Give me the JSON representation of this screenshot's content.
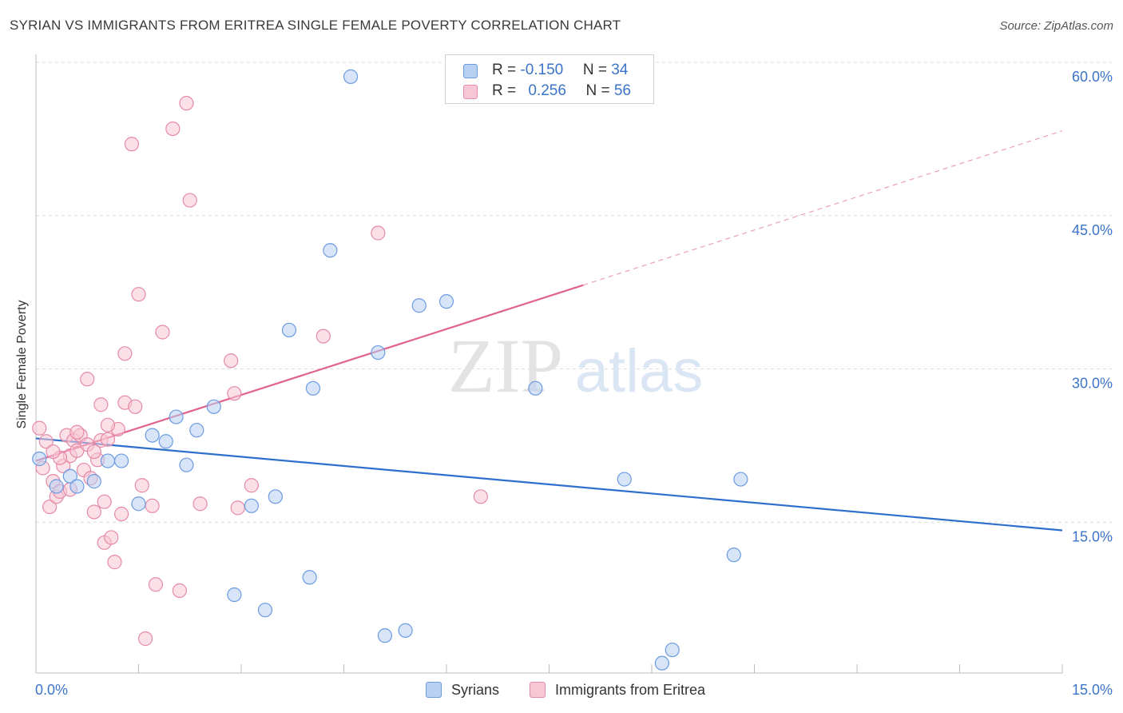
{
  "title": "SYRIAN VS IMMIGRANTS FROM ERITREA SINGLE FEMALE POVERTY CORRELATION CHART",
  "source": "Source: ZipAtlas.com",
  "watermark": {
    "zip": "ZIP",
    "atlas": "atlas"
  },
  "legend_top": {
    "rows": [
      {
        "r_label": "R = ",
        "r_value": "-0.150",
        "n_label": "N = ",
        "n_value": "34"
      },
      {
        "r_label": "R = ",
        "r_value": "0.256",
        "n_label": "N = ",
        "n_value": "56"
      }
    ]
  },
  "legend_bottom": {
    "syrians": "Syrians",
    "eritrea": "Immigrants from Eritrea"
  },
  "chart_data": {
    "type": "scatter",
    "ylabel": "Single Female Poverty",
    "xlim": [
      0,
      15
    ],
    "ylim": [
      0,
      60
    ],
    "x_tick_labels": [
      "0.0%",
      "15.0%"
    ],
    "y_ticks": [
      15,
      30,
      45,
      60
    ],
    "y_tick_labels": [
      "15.0%",
      "30.0%",
      "45.0%",
      "60.0%"
    ],
    "grid": true,
    "colors": {
      "syrians_fill": "#b8d0f2",
      "syrians_stroke": "#6b9be0",
      "syrians_line": "#2f6fcc",
      "eritrea_fill": "#f8c7d6",
      "eritrea_stroke": "#e58aa6",
      "eritrea_line": "#e0628d",
      "axis_label": "#3b74c8"
    },
    "series": [
      {
        "name": "Syrians",
        "points": [
          [
            0.05,
            21.2
          ],
          [
            0.3,
            18.5
          ],
          [
            0.5,
            19.5
          ],
          [
            0.6,
            18.5
          ],
          [
            0.85,
            19.0
          ],
          [
            1.05,
            21.0
          ],
          [
            1.25,
            21.0
          ],
          [
            1.5,
            16.8
          ],
          [
            1.7,
            23.5
          ],
          [
            1.9,
            22.9
          ],
          [
            2.05,
            25.3
          ],
          [
            2.2,
            20.6
          ],
          [
            2.35,
            24.0
          ],
          [
            2.6,
            26.3
          ],
          [
            2.9,
            7.9
          ],
          [
            3.15,
            16.6
          ],
          [
            3.35,
            6.4
          ],
          [
            3.5,
            17.5
          ],
          [
            3.7,
            33.8
          ],
          [
            4.0,
            9.6
          ],
          [
            4.05,
            28.1
          ],
          [
            4.3,
            41.6
          ],
          [
            4.6,
            58.6
          ],
          [
            5.0,
            31.6
          ],
          [
            5.1,
            3.9
          ],
          [
            5.4,
            4.4
          ],
          [
            5.6,
            36.2
          ],
          [
            6.0,
            36.6
          ],
          [
            7.3,
            28.1
          ],
          [
            8.6,
            19.2
          ],
          [
            9.3,
            2.5
          ],
          [
            9.15,
            1.2
          ],
          [
            10.2,
            11.8
          ],
          [
            10.3,
            19.2
          ]
        ],
        "trend": {
          "x": [
            0,
            15
          ],
          "y": [
            23.2,
            14.2
          ]
        }
      },
      {
        "name": "Immigrants from Eritrea",
        "points": [
          [
            0.05,
            24.2
          ],
          [
            0.1,
            20.3
          ],
          [
            0.15,
            22.9
          ],
          [
            0.2,
            16.5
          ],
          [
            0.25,
            19.0
          ],
          [
            0.3,
            17.5
          ],
          [
            0.35,
            18.0
          ],
          [
            0.4,
            20.5
          ],
          [
            0.45,
            23.5
          ],
          [
            0.5,
            21.5
          ],
          [
            0.55,
            23.0
          ],
          [
            0.6,
            22.0
          ],
          [
            0.65,
            23.5
          ],
          [
            0.7,
            20.1
          ],
          [
            0.75,
            29.0
          ],
          [
            0.8,
            19.3
          ],
          [
            0.85,
            16.0
          ],
          [
            0.9,
            21.1
          ],
          [
            0.95,
            26.5
          ],
          [
            0.95,
            23.0
          ],
          [
            1.0,
            13.0
          ],
          [
            1.0,
            17.0
          ],
          [
            1.05,
            23.1
          ],
          [
            1.1,
            13.5
          ],
          [
            1.15,
            11.1
          ],
          [
            1.2,
            24.1
          ],
          [
            1.25,
            15.8
          ],
          [
            1.3,
            26.7
          ],
          [
            1.3,
            31.5
          ],
          [
            1.4,
            52.0
          ],
          [
            1.5,
            37.3
          ],
          [
            1.45,
            26.3
          ],
          [
            1.55,
            18.6
          ],
          [
            1.6,
            3.6
          ],
          [
            1.7,
            16.6
          ],
          [
            1.75,
            8.9
          ],
          [
            1.85,
            33.6
          ],
          [
            2.0,
            53.5
          ],
          [
            2.1,
            8.3
          ],
          [
            2.2,
            56.0
          ],
          [
            2.25,
            46.5
          ],
          [
            2.4,
            16.8
          ],
          [
            2.85,
            30.8
          ],
          [
            2.9,
            27.6
          ],
          [
            2.95,
            16.4
          ],
          [
            3.15,
            18.6
          ],
          [
            4.2,
            33.2
          ],
          [
            5.0,
            43.3
          ],
          [
            6.5,
            17.5
          ],
          [
            0.6,
            23.8
          ],
          [
            0.35,
            21.3
          ],
          [
            0.5,
            18.2
          ],
          [
            0.75,
            22.6
          ],
          [
            0.85,
            21.9
          ],
          [
            1.05,
            24.5
          ],
          [
            0.25,
            21.9
          ]
        ],
        "trend": {
          "x": [
            0,
            8.0
          ],
          "y": [
            21.0,
            38.2
          ]
        },
        "trend_dashed": {
          "x": [
            8.0,
            15
          ],
          "y": [
            38.2,
            53.3
          ]
        }
      }
    ]
  }
}
